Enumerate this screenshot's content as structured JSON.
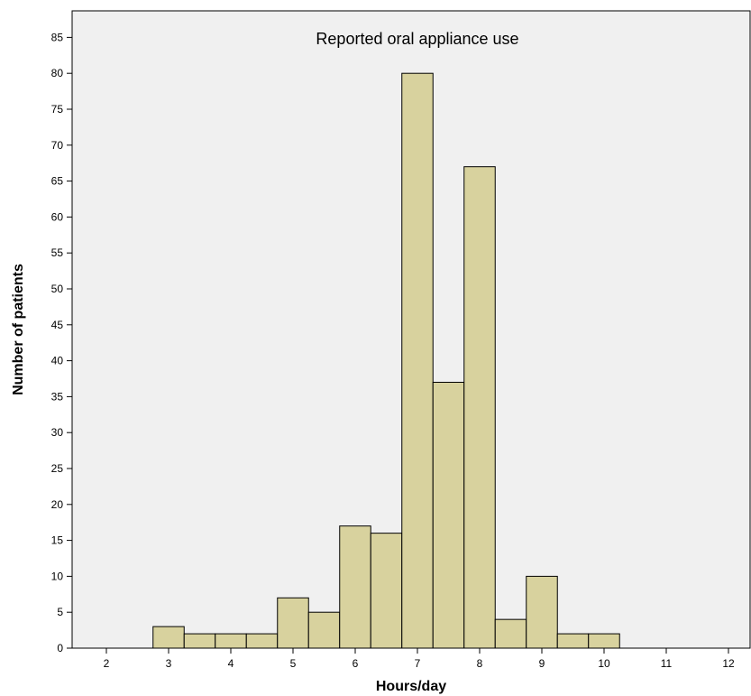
{
  "chart_data": {
    "type": "bar",
    "title": "Reported oral appliance use",
    "xlabel": "Hours/day",
    "ylabel": "Number of patients",
    "xlim": [
      1.5,
      12.5
    ],
    "ylim": [
      0,
      88
    ],
    "x_ticks": [
      2,
      3,
      4,
      5,
      6,
      7,
      8,
      9,
      10,
      11,
      12
    ],
    "y_ticks": [
      0,
      5,
      10,
      15,
      20,
      25,
      30,
      35,
      40,
      45,
      50,
      55,
      60,
      65,
      70,
      75,
      80,
      85
    ],
    "bin_width": 0.5,
    "bins": [
      {
        "start": 2.75,
        "end": 3.25,
        "value": 3
      },
      {
        "start": 3.25,
        "end": 3.75,
        "value": 2
      },
      {
        "start": 3.75,
        "end": 4.25,
        "value": 2
      },
      {
        "start": 4.25,
        "end": 4.75,
        "value": 2
      },
      {
        "start": 4.75,
        "end": 5.25,
        "value": 7
      },
      {
        "start": 5.25,
        "end": 5.75,
        "value": 5
      },
      {
        "start": 5.75,
        "end": 6.25,
        "value": 17
      },
      {
        "start": 6.25,
        "end": 6.75,
        "value": 16
      },
      {
        "start": 6.75,
        "end": 7.25,
        "value": 80
      },
      {
        "start": 7.25,
        "end": 7.75,
        "value": 37
      },
      {
        "start": 7.75,
        "end": 8.25,
        "value": 67
      },
      {
        "start": 8.25,
        "end": 8.75,
        "value": 4
      },
      {
        "start": 8.75,
        "end": 9.25,
        "value": 10
      },
      {
        "start": 9.25,
        "end": 9.75,
        "value": 2
      },
      {
        "start": 9.75,
        "end": 10.25,
        "value": 2
      }
    ],
    "grid": false,
    "colors": {
      "bar_fill": "#D8D29E",
      "bar_stroke": "#000000",
      "plot_background": "#F0F0F0"
    }
  }
}
